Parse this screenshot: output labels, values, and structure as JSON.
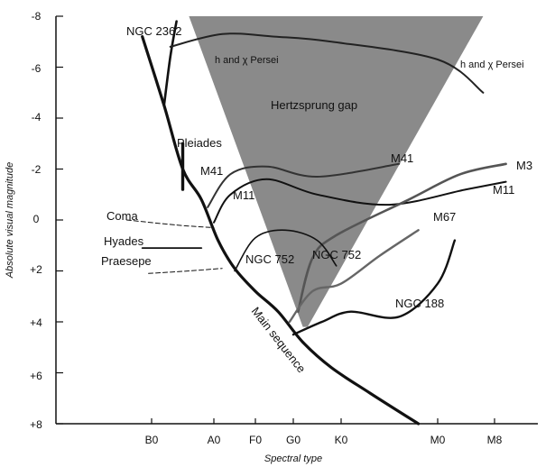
{
  "chart_data": {
    "type": "line",
    "title": "",
    "xlabel": "Spectral type",
    "ylabel": "Absolute visual magnitude",
    "x_ticks": [
      "B0",
      "A0",
      "F0",
      "G0",
      "K0",
      "M0",
      "M8"
    ],
    "y_ticks": [
      "-8",
      "-6",
      "-4",
      "-2",
      "0",
      "+2",
      "+4",
      "+6",
      "+8"
    ],
    "y_tick_values": [
      -8,
      -6,
      -4,
      -2,
      0,
      2,
      4,
      6,
      8
    ],
    "ylim": [
      8,
      -8
    ],
    "gap_label": "Hertzsprung gap",
    "main_sequence_label": "Main sequence",
    "cluster_labels": [
      "NGC 2362",
      "h and χ Persei",
      "h and χ Persei",
      "Pleiades",
      "M41",
      "M41",
      "M11",
      "M11",
      "Coma",
      "Hyades",
      "Praesepe",
      "NGC 752",
      "NGC 752",
      "M3",
      "M67",
      "NGC 188"
    ],
    "spectral_index": {
      "B0": 0,
      "A0": 1,
      "F0": 2,
      "G0": 3,
      "K0": 4,
      "M0": 5,
      "M8": 6
    },
    "series": [
      {
        "name": "Main sequence",
        "points": [
          [
            -0.15,
            -7.2
          ],
          [
            0.2,
            -4.5
          ],
          [
            0.5,
            -2.0
          ],
          [
            0.8,
            -0.8
          ],
          [
            1.1,
            0.8
          ],
          [
            1.5,
            1.9
          ],
          [
            2.0,
            2.8
          ],
          [
            2.6,
            3.6
          ],
          [
            3.2,
            4.8
          ],
          [
            3.8,
            5.8
          ],
          [
            4.3,
            6.8
          ],
          [
            4.8,
            8.0
          ]
        ]
      },
      {
        "name": "NGC 2362",
        "points": [
          [
            0.4,
            -7.8
          ],
          [
            0.3,
            -6.4
          ],
          [
            0.2,
            -4.5
          ]
        ]
      },
      {
        "name": "h and χ Persei",
        "points": [
          [
            0.3,
            -6.8
          ],
          [
            1.2,
            -7.3
          ],
          [
            2.5,
            -7.2
          ],
          [
            3.8,
            -7.0
          ],
          [
            5.0,
            -6.3
          ],
          [
            5.8,
            -5.0
          ]
        ]
      },
      {
        "name": "Pleiades",
        "points": [
          [
            0.5,
            -3.0
          ],
          [
            0.5,
            -1.2
          ]
        ]
      },
      {
        "name": "M41",
        "points": [
          [
            0.9,
            -0.5
          ],
          [
            1.4,
            -1.8
          ],
          [
            2.3,
            -2.1
          ],
          [
            3.5,
            -1.7
          ],
          [
            4.6,
            -2.2
          ]
        ]
      },
      {
        "name": "M11",
        "points": [
          [
            1.0,
            0.1
          ],
          [
            1.4,
            -1.0
          ],
          [
            2.3,
            -1.6
          ],
          [
            3.5,
            -1.0
          ],
          [
            4.5,
            -0.6
          ],
          [
            5.5,
            -1.2
          ],
          [
            6.2,
            -1.5
          ]
        ]
      },
      {
        "name": "M3",
        "points": [
          [
            3.1,
            3.6
          ],
          [
            3.4,
            1.5
          ],
          [
            3.9,
            0.6
          ],
          [
            4.7,
            -0.8
          ],
          [
            5.4,
            -1.8
          ],
          [
            6.2,
            -2.2
          ]
        ]
      },
      {
        "name": "Coma",
        "points": [
          [
            -0.4,
            0.0
          ],
          [
            0.4,
            0.2
          ],
          [
            1.0,
            0.3
          ]
        ]
      },
      {
        "name": "Hyades",
        "points": [
          [
            -0.15,
            1.1
          ],
          [
            0.8,
            1.1
          ]
        ]
      },
      {
        "name": "Praesepe",
        "points": [
          [
            -0.05,
            2.1
          ],
          [
            0.6,
            2.0
          ],
          [
            1.2,
            1.9
          ]
        ]
      },
      {
        "name": "NGC 752",
        "points": [
          [
            1.5,
            2.0
          ],
          [
            2.0,
            0.7
          ],
          [
            2.8,
            0.4
          ],
          [
            3.5,
            0.8
          ],
          [
            3.9,
            1.8
          ]
        ]
      },
      {
        "name": "M67",
        "points": [
          [
            2.9,
            4.0
          ],
          [
            3.4,
            2.8
          ],
          [
            4.0,
            2.5
          ],
          [
            4.4,
            1.4
          ],
          [
            4.8,
            0.4
          ]
        ]
      },
      {
        "name": "NGC 188",
        "points": [
          [
            3.0,
            4.5
          ],
          [
            3.6,
            4.0
          ],
          [
            4.1,
            3.6
          ],
          [
            4.6,
            3.8
          ],
          [
            5.0,
            2.5
          ],
          [
            5.3,
            0.8
          ]
        ]
      }
    ],
    "gap_polygon": [
      [
        0.6,
        -8.0
      ],
      [
        5.8,
        -8.0
      ],
      [
        3.3,
        4.2
      ],
      [
        3.2,
        4.2
      ]
    ],
    "grid": false,
    "legend": "none"
  }
}
